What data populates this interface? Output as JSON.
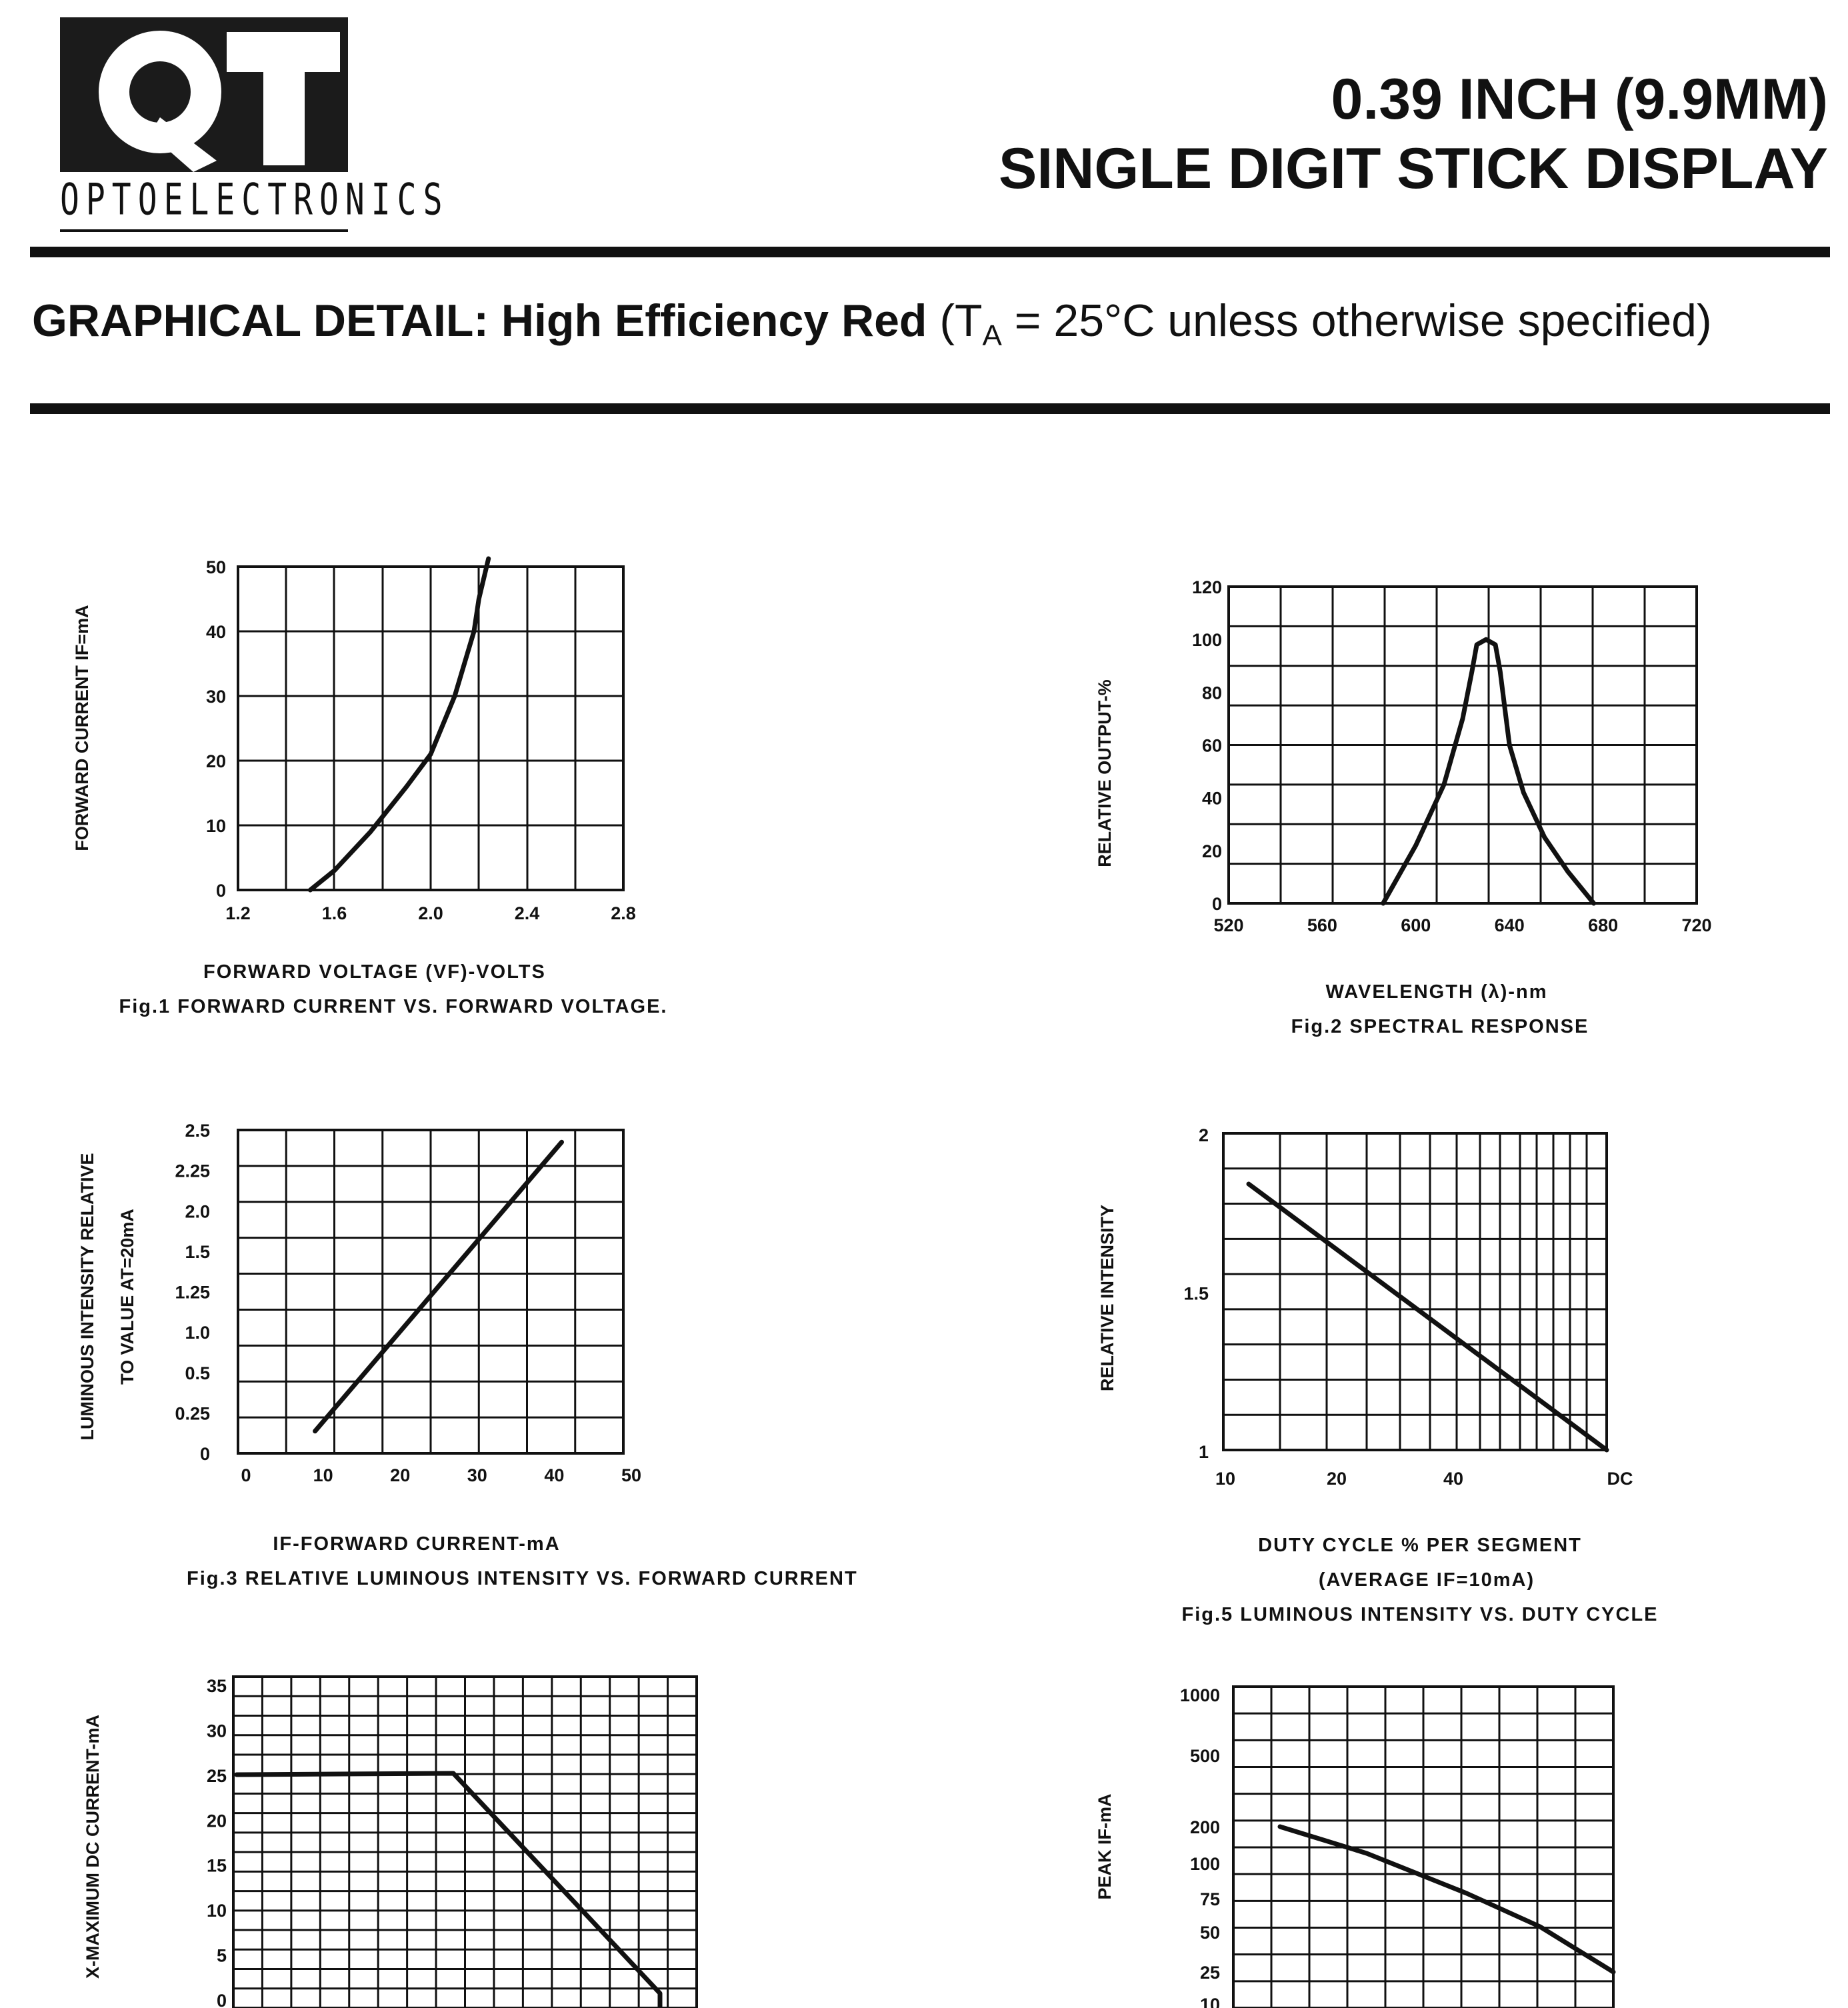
{
  "header": {
    "logo_letters": "QT",
    "logo_subtitle": "OPTOELECTRONICS",
    "title_line1": "0.39 INCH (9.9MM)",
    "title_line2": "SINGLE  DIGIT STICK DISPLAY"
  },
  "section": {
    "heading_bold": "GRAPHICAL DETAIL: High Efficiency Red",
    "heading_paren_open": " (T",
    "heading_sub": "A",
    "heading_rest": " = 25°C unless otherwise specified)"
  },
  "chart_data": [
    {
      "id": "fig1",
      "type": "line",
      "xlabel": "FORWARD VOLTAGE (VF)-VOLTS",
      "ylabel": "FORWARD CURRENT IF=mA",
      "caption": "Fig.1 FORWARD CURRENT VS. FORWARD VOLTAGE.",
      "xticks": [
        "1.2",
        "1.6",
        "2.0",
        "2.4",
        "2.8"
      ],
      "yticks": [
        "0",
        "10",
        "20",
        "30",
        "40",
        "50"
      ],
      "xlim": [
        1.2,
        2.8
      ],
      "ylim": [
        0,
        50
      ],
      "grid": true,
      "series": [
        {
          "x": [
            1.5,
            1.6,
            1.75,
            1.9,
            2.0,
            2.1,
            2.18,
            2.2,
            2.24
          ],
          "y": [
            0,
            3,
            9,
            16,
            21,
            30,
            40,
            45,
            52
          ]
        }
      ]
    },
    {
      "id": "fig2",
      "type": "line",
      "xlabel": "WAVELENGTH (λ)-nm",
      "ylabel": "RELATIVE OUTPUT-%",
      "caption": "Fig.2 SPECTRAL RESPONSE",
      "xticks": [
        "520",
        "560",
        "600",
        "640",
        "680",
        "720"
      ],
      "yticks": [
        "0",
        "20",
        "40",
        "60",
        "80",
        "100",
        "120"
      ],
      "xlim": [
        520,
        720
      ],
      "ylim": [
        0,
        120
      ],
      "grid": true,
      "series": [
        {
          "x": [
            586,
            600,
            612,
            620,
            624,
            626,
            630,
            634,
            636,
            640,
            646,
            655,
            665,
            676
          ],
          "y": [
            0,
            22,
            45,
            70,
            88,
            98,
            100,
            98,
            88,
            60,
            42,
            25,
            12,
            0
          ]
        }
      ]
    },
    {
      "id": "fig3",
      "type": "line",
      "xlabel": "IF-FORWARD CURRENT-mA",
      "ylabel": "LUMINOUS INTENSITY RELATIVE TO VALUE AT=20mA",
      "caption": "Fig.3 RELATIVE LUMINOUS INTENSITY VS. FORWARD CURRENT",
      "xticks": [
        "0",
        "10",
        "20",
        "30",
        "40",
        "50"
      ],
      "yticks": [
        "0",
        "0.25",
        "0.5",
        "1.0",
        "1.25",
        "1.5",
        "2.0",
        "2.25",
        "2.5"
      ],
      "xlim": [
        0,
        50
      ],
      "grid": true,
      "series": [
        {
          "x": [
            10,
            42
          ],
          "y": [
            0.25,
            2.35
          ]
        }
      ]
    },
    {
      "id": "fig5",
      "type": "line",
      "xlabel": "DUTY CYCLE % PER SEGMENT",
      "xlabel2": "(AVERAGE  IF=10mA)",
      "ylabel": "RELATIVE INTENSITY",
      "caption": "Fig.5 LUMINOUS INTENSITY VS. DUTY CYCLE",
      "xticks": [
        "10",
        "20",
        "40",
        "DC"
      ],
      "yticks": [
        "1",
        "1.5",
        "2"
      ],
      "ylim": [
        1,
        2
      ],
      "grid": true,
      "xscale": "log",
      "series": [
        {
          "x": [
            12,
            100
          ],
          "y": [
            1.85,
            1.0
          ]
        }
      ]
    },
    {
      "id": "fig4",
      "type": "line",
      "ylabel": "X-MAXIMUM DC CURRENT-mA",
      "yticks": [
        "0",
        "5",
        "10",
        "15",
        "20",
        "25",
        "30",
        "35"
      ],
      "ylim": [
        0,
        35
      ],
      "grid": true,
      "series": [
        {
          "y": [
            25,
            25,
            25,
            5,
            0
          ]
        }
      ]
    },
    {
      "id": "fig6",
      "type": "line",
      "ylabel": "PEAK IF-mA",
      "yticks": [
        "10",
        "25",
        "50",
        "75",
        "100",
        "200",
        "500",
        "1000"
      ],
      "ylim": [
        10,
        1000
      ],
      "grid": true,
      "series": [
        {
          "y": [
            200,
            25
          ]
        }
      ]
    }
  ]
}
